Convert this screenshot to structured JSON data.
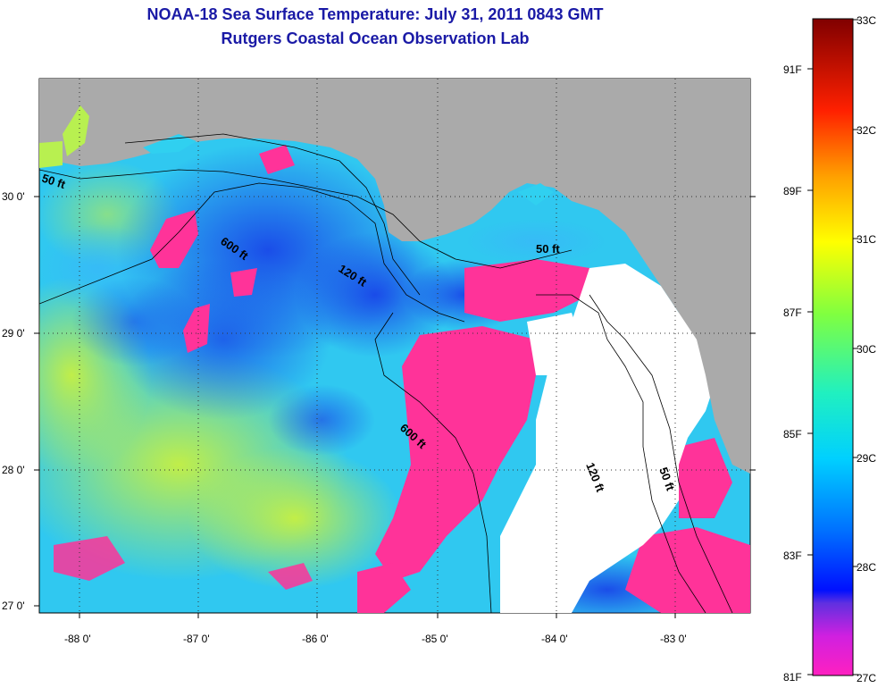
{
  "title": {
    "line1": "NOAA-18 Sea Surface Temperature:  July 31, 2011 0843 GMT",
    "line2": "Rutgers Coastal Ocean Observation Lab"
  },
  "map": {
    "lon_ticks": [
      "-88 0'",
      "-87 0'",
      "-86 0'",
      "-85 0'",
      "-84 0'",
      "-83 0'"
    ],
    "lat_ticks": [
      "30 0'",
      "29 0'",
      "28 0'",
      "27 0'"
    ],
    "contours": [
      "50 ft",
      "600 ft",
      "120 ft",
      "50 ft",
      "600 ft",
      "120 ft",
      "50 ft"
    ],
    "colors": {
      "land": "#aaaaaa",
      "cloud": "#ffffff",
      "ocean_warm": "#b8f050",
      "ocean_mid": "#30d0f0",
      "ocean_cool": "#2060f0",
      "ocean_cold": "#ff3399"
    }
  },
  "colorbar": {
    "celsius": [
      "33C",
      "32C",
      "31C",
      "30C",
      "29C",
      "28C",
      "27C"
    ],
    "fahrenheit": [
      "91F",
      "89F",
      "87F",
      "85F",
      "83F",
      "81F"
    ]
  }
}
